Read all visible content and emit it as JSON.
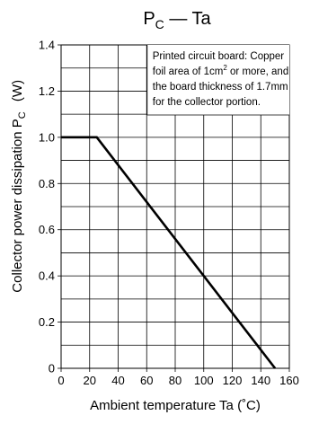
{
  "chart_data": {
    "type": "line",
    "title": {
      "main": "P",
      "sub": "C",
      "rest": " — Ta"
    },
    "xlabel": "Ambient temperature   Ta   (˚C)",
    "ylabel": {
      "main": "Collector power dissipation   P",
      "sub": "C",
      "unit": "(W)"
    },
    "xlim": [
      0,
      160
    ],
    "ylim": [
      0,
      1.4
    ],
    "x_ticks": [
      0,
      20,
      40,
      60,
      80,
      100,
      120,
      140,
      160
    ],
    "x_tick_labels": [
      "0",
      "20",
      "40",
      "60",
      "80",
      "100",
      "120",
      "140",
      "160"
    ],
    "y_ticks": [
      0,
      0.2,
      0.4,
      0.6,
      0.8,
      1.0,
      1.2,
      1.4
    ],
    "y_tick_labels": [
      "0",
      "0.2",
      "0.4",
      "0.6",
      "0.8",
      "1.0",
      "1.2",
      "1.4"
    ],
    "grid": true,
    "series": [
      {
        "x": [
          0,
          25,
          150
        ],
        "y": [
          1.0,
          1.0,
          0
        ]
      }
    ],
    "annotation": {
      "lines": [
        [
          "Printed circuit board: Copper"
        ],
        [
          "foil area of 1cm",
          "2",
          " or more, and"
        ],
        [
          "the board thickness of 1.7mm"
        ],
        [
          "for the collector portion."
        ]
      ]
    },
    "colors": {
      "line": "#000000",
      "grid": "#000000",
      "background": "#ffffff"
    }
  }
}
